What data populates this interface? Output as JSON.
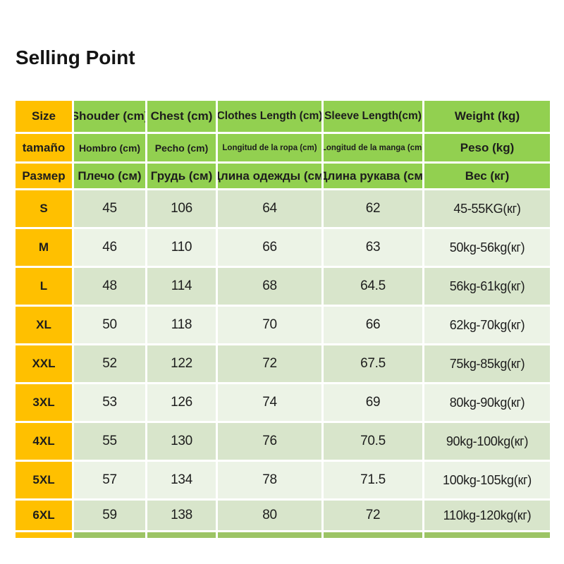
{
  "page": {
    "title": "Selling Point"
  },
  "table": {
    "header_rows": [
      {
        "cells": [
          "Size",
          "Shouder (cm)",
          "Chest (cm)",
          "Clothes Length (cm)",
          "Sleeve Length(cm)",
          "Weight (kg)"
        ]
      },
      {
        "cells": [
          "tamaño",
          "Hombro (cm)",
          "Pecho (cm)",
          "Longitud de la ropa (cm)",
          "Longitud de la manga (cm)",
          "Peso (kg)"
        ]
      },
      {
        "cells": [
          "Размер",
          "Плечо (см)",
          "Грудь (см)",
          "Длина одежды (см)",
          "Длина рукава (см)",
          "Вес (кг)"
        ]
      }
    ],
    "columns": [
      "size",
      "shoulder",
      "chest",
      "clothes_length",
      "sleeve_length",
      "weight"
    ],
    "rows": [
      {
        "size": "S",
        "shoulder": "45",
        "chest": "106",
        "clothes_length": "64",
        "sleeve_length": "62",
        "weight": "45-55KG(кг)"
      },
      {
        "size": "M",
        "shoulder": "46",
        "chest": "110",
        "clothes_length": "66",
        "sleeve_length": "63",
        "weight": "50kg-56kg(кг)"
      },
      {
        "size": "L",
        "shoulder": "48",
        "chest": "114",
        "clothes_length": "68",
        "sleeve_length": "64.5",
        "weight": "56kg-61kg(кг)"
      },
      {
        "size": "XL",
        "shoulder": "50",
        "chest": "118",
        "clothes_length": "70",
        "sleeve_length": "66",
        "weight": "62kg-70kg(кг)"
      },
      {
        "size": "XXL",
        "shoulder": "52",
        "chest": "122",
        "clothes_length": "72",
        "sleeve_length": "67.5",
        "weight": "75kg-85kg(кг)"
      },
      {
        "size": "3XL",
        "shoulder": "53",
        "chest": "126",
        "clothes_length": "74",
        "sleeve_length": "69",
        "weight": "80kg-90kg(кг)"
      },
      {
        "size": "4XL",
        "shoulder": "55",
        "chest": "130",
        "clothes_length": "76",
        "sleeve_length": "70.5",
        "weight": "90kg-100kg(кг)"
      },
      {
        "size": "5XL",
        "shoulder": "57",
        "chest": "134",
        "clothes_length": "78",
        "sleeve_length": "71.5",
        "weight": "100kg-105kg(кг)"
      },
      {
        "size": "6XL",
        "shoulder": "59",
        "chest": "138",
        "clothes_length": "80",
        "sleeve_length": "72",
        "weight": "110kg-120kg(кг)"
      }
    ],
    "colors": {
      "header_green": "#92d050",
      "size_column_yellow": "#ffc000",
      "row_odd_green": "#d8e5cb",
      "row_even_green": "#ecf3e6",
      "strip_green": "#9cc465",
      "text": "#1d1d1d",
      "separator": "#ffffff"
    }
  }
}
